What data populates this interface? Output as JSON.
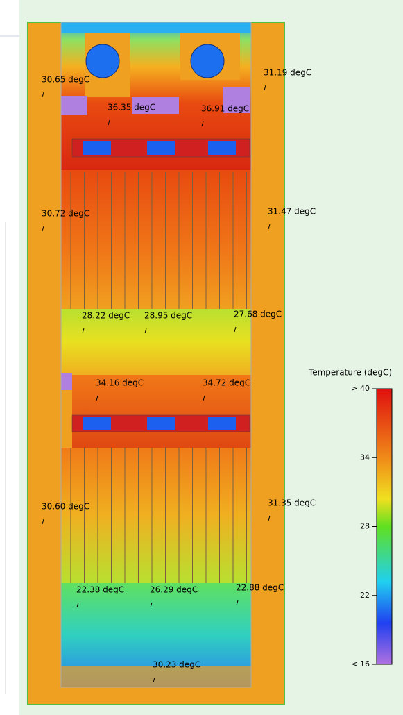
{
  "probes": [
    {
      "label": "30.65 degC"
    },
    {
      "label": "36.35 degC"
    },
    {
      "label": "36.91 degC"
    },
    {
      "label": "31.19 degC"
    },
    {
      "label": "30.72 degC"
    },
    {
      "label": "31.47 degC"
    },
    {
      "label": "28.22 degC"
    },
    {
      "label": "28.95 degC"
    },
    {
      "label": "27.68 degC"
    },
    {
      "label": "34.16 degC"
    },
    {
      "label": "34.72 degC"
    },
    {
      "label": "30.60 degC"
    },
    {
      "label": "31.35 degC"
    },
    {
      "label": "22.38 degC"
    },
    {
      "label": "26.29 degC"
    },
    {
      "label": "22.88 degC"
    },
    {
      "label": "30.23 degC"
    }
  ],
  "colorbar": {
    "title": "Temperature (degC)",
    "range": [
      16,
      40
    ],
    "ticks": [
      {
        "value": 40,
        "label": "> 40"
      },
      34,
      28,
      22,
      {
        "value": 16,
        "label": "< 16"
      }
    ]
  }
}
